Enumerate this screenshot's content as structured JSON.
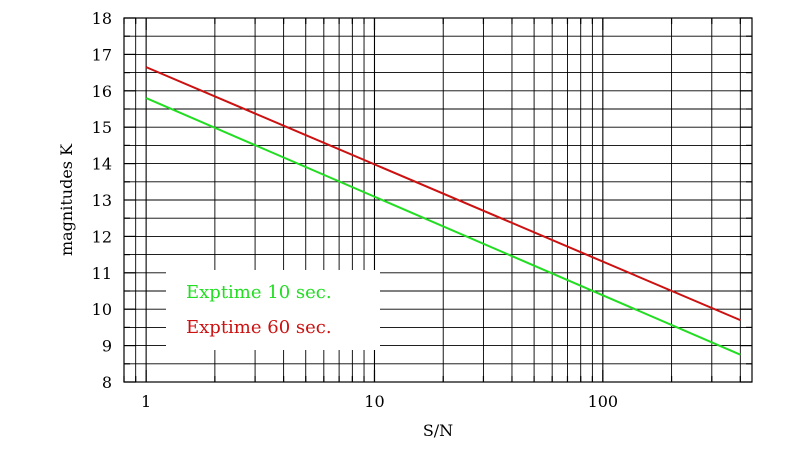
{
  "chart_data": {
    "type": "line",
    "title": "",
    "xlabel": "S/N",
    "ylabel": "magnitudes K",
    "xscale": "log",
    "xlim": [
      0.8,
      450
    ],
    "ylim": [
      8,
      18
    ],
    "x_tick_labels": [
      "1",
      "10",
      "100"
    ],
    "y_tick_labels": [
      "8",
      "9",
      "10",
      "11",
      "12",
      "13",
      "14",
      "15",
      "16",
      "17",
      "18"
    ],
    "grid": true,
    "legend_position": "lower-left",
    "series": [
      {
        "name": "Exptime 10 sec.",
        "color": "#22dd22",
        "x": [
          1,
          400
        ],
        "y": [
          15.8,
          8.75
        ]
      },
      {
        "name": "Exptime 60 sec.",
        "color": "#cc1111",
        "x": [
          1,
          400
        ],
        "y": [
          16.65,
          9.7
        ]
      }
    ]
  }
}
